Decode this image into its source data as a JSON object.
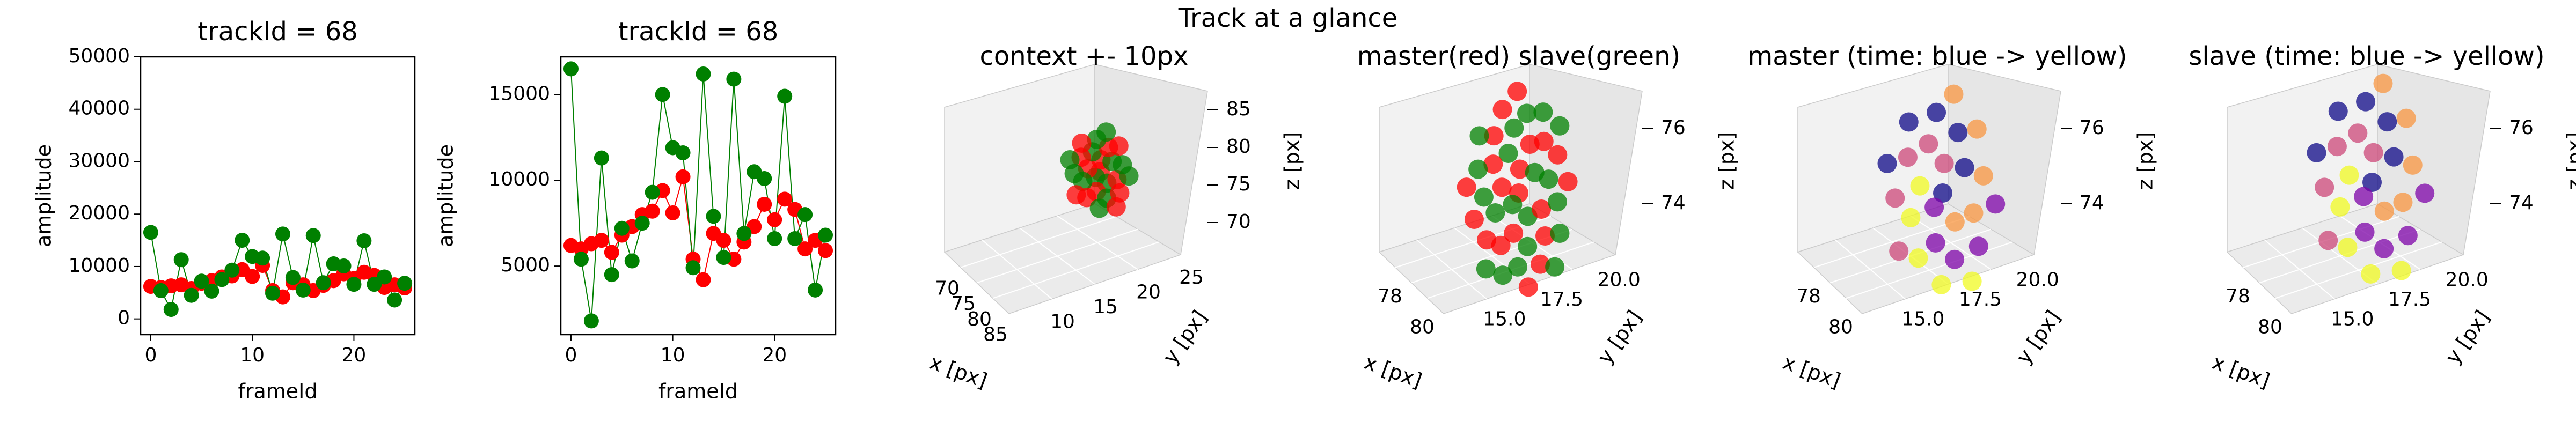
{
  "figure": {
    "suptitle": "Track at a glance"
  },
  "chart_data": [
    {
      "type": "line",
      "title": "trackId = 68",
      "xlabel": "frameId",
      "ylabel": "amplitude",
      "xlim": [
        -1,
        26
      ],
      "ylim": [
        -3000,
        50000
      ],
      "xticks": [
        0,
        10,
        20
      ],
      "yticks": [
        0,
        10000,
        20000,
        30000,
        40000,
        50000
      ],
      "grid": false,
      "x": [
        0,
        1,
        2,
        3,
        4,
        5,
        6,
        7,
        8,
        9,
        10,
        11,
        12,
        13,
        14,
        15,
        16,
        17,
        18,
        19,
        20,
        21,
        22,
        23,
        24,
        25
      ],
      "series": [
        {
          "color": "#ff0000",
          "values": [
            6200,
            6000,
            6300,
            6500,
            5800,
            6800,
            7300,
            8000,
            8200,
            9400,
            8100,
            10200,
            5400,
            4200,
            6900,
            6500,
            5400,
            6400,
            7300,
            8600,
            7700,
            8900,
            8300,
            6000,
            6500,
            5900
          ]
        },
        {
          "color": "#008000",
          "values": [
            16500,
            5400,
            1800,
            11300,
            4500,
            7200,
            5300,
            7500,
            9300,
            15000,
            11900,
            11600,
            4900,
            16200,
            7900,
            5500,
            15900,
            6900,
            10500,
            10100,
            6600,
            14900,
            6600,
            8000,
            3600,
            6800
          ]
        }
      ]
    },
    {
      "type": "line",
      "title": "trackId = 68",
      "xlabel": "frameId",
      "ylabel": "amplitude",
      "xlim": [
        -1,
        26
      ],
      "ylim": [
        1000,
        17200
      ],
      "xticks": [
        0,
        10,
        20
      ],
      "yticks": [
        5000,
        10000,
        15000
      ],
      "grid": false,
      "x": [
        0,
        1,
        2,
        3,
        4,
        5,
        6,
        7,
        8,
        9,
        10,
        11,
        12,
        13,
        14,
        15,
        16,
        17,
        18,
        19,
        20,
        21,
        22,
        23,
        24,
        25
      ],
      "series": [
        {
          "color": "#ff0000",
          "values": [
            6200,
            6000,
            6300,
            6500,
            5800,
            6800,
            7300,
            8000,
            8200,
            9400,
            8100,
            10200,
            5400,
            4200,
            6900,
            6500,
            5400,
            6400,
            7300,
            8600,
            7700,
            8900,
            8300,
            6000,
            6500,
            5900
          ]
        },
        {
          "color": "#008000",
          "values": [
            16500,
            5400,
            1800,
            11300,
            4500,
            7200,
            5300,
            7500,
            9300,
            15000,
            11900,
            11600,
            4900,
            16200,
            7900,
            5500,
            15900,
            6900,
            10500,
            10100,
            6600,
            14900,
            6600,
            8000,
            3600,
            6800
          ]
        }
      ]
    },
    {
      "type": "scatter",
      "title": "context +- 10px",
      "xlabel": "x [px]",
      "ylabel": "y [px]",
      "zlabel": "z [px]",
      "xticks": [
        "70",
        "75",
        "80",
        "85"
      ],
      "yticks": [
        "10",
        "15",
        "20",
        "25"
      ],
      "zticks": [
        "70",
        "75",
        "80",
        "85"
      ],
      "series": [
        {
          "color": "#ff0000"
        },
        {
          "color": "#008000"
        }
      ]
    },
    {
      "type": "scatter",
      "title": "master(red) slave(green)",
      "xlabel": "x [px]",
      "ylabel": "y [px]",
      "zlabel": "z [px]",
      "xticks": [
        "78",
        "80"
      ],
      "yticks": [
        "15.0",
        "17.5",
        "20.0"
      ],
      "zticks": [
        "74",
        "76"
      ],
      "series": [
        {
          "color": "#ff0000"
        },
        {
          "color": "#008000"
        }
      ]
    },
    {
      "type": "scatter",
      "title": "master (time: blue -> yellow)",
      "xlabel": "x [px]",
      "ylabel": "y [px]",
      "zlabel": "z [px]",
      "xticks": [
        "78",
        "80"
      ],
      "yticks": [
        "15.0",
        "17.5",
        "20.0"
      ],
      "zticks": [
        "74",
        "76"
      ],
      "colormap": [
        "#0d0887",
        "#7e03a8",
        "#cc4778",
        "#f89540",
        "#f0f921"
      ]
    },
    {
      "type": "scatter",
      "title": "slave (time: blue -> yellow)",
      "xlabel": "x [px]",
      "ylabel": "y [px]",
      "zlabel": "z [px]",
      "xticks": [
        "78",
        "80"
      ],
      "yticks": [
        "15.0",
        "17.5",
        "20.0"
      ],
      "zticks": [
        "74",
        "76"
      ],
      "colormap": [
        "#0d0887",
        "#7e03a8",
        "#cc4778",
        "#f89540",
        "#f0f921"
      ]
    }
  ]
}
